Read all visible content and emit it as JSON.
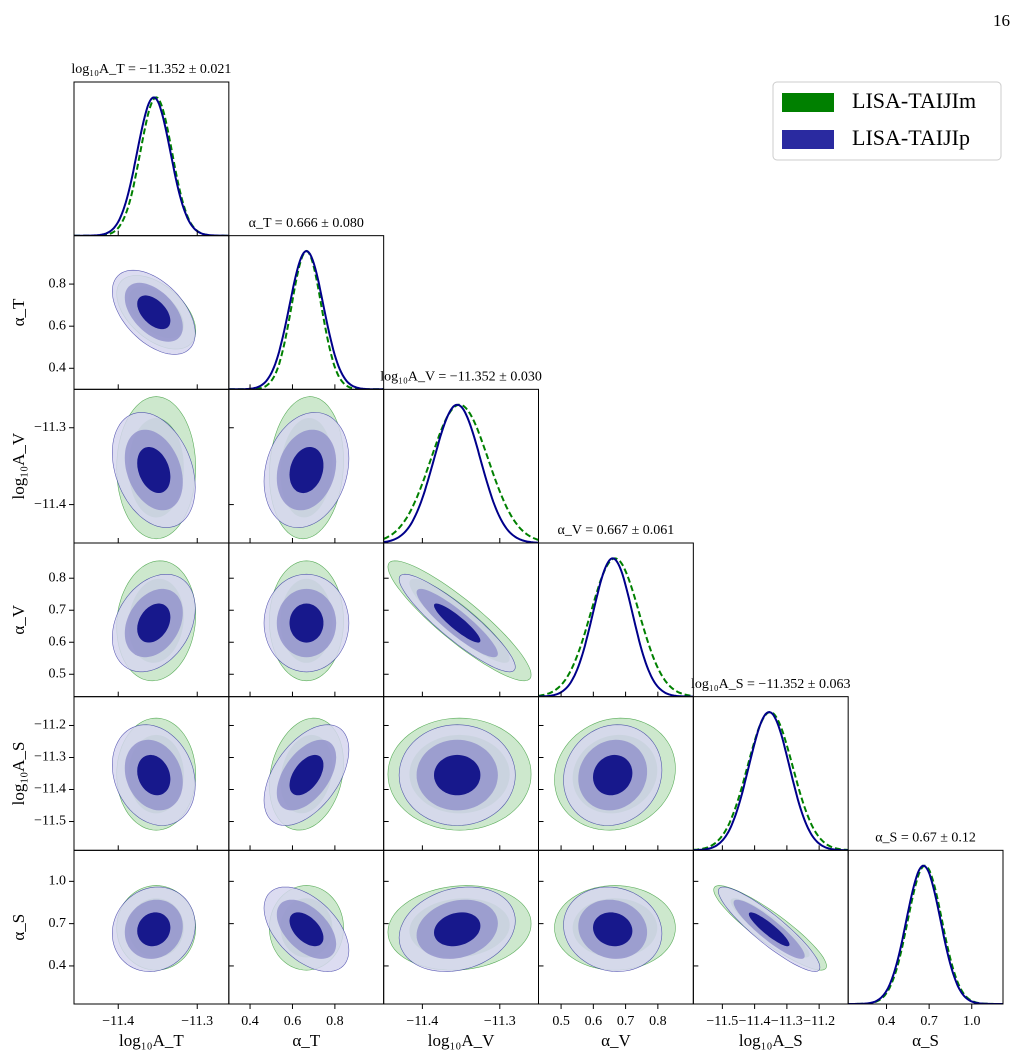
{
  "page_number": "16",
  "chart_data": {
    "type": "corner",
    "params": [
      {
        "label": "log₁₀A_T",
        "title": "log₁₀A_T = −11.352 ± 0.021",
        "lim": [
          -11.456,
          -11.26
        ],
        "ticks": [
          {
            "value": -11.4,
            "label": "−11.4"
          },
          {
            "value": -11.3,
            "label": "−11.3"
          }
        ]
      },
      {
        "label": "α_T",
        "title": "α_T = 0.666 ± 0.080",
        "lim": [
          0.3,
          1.03
        ],
        "ticks": [
          0.4,
          0.6,
          0.8
        ]
      },
      {
        "label": "log₁₀A_V",
        "title": "log₁₀A_V = −11.352 ± 0.030",
        "lim": [
          -11.45,
          -11.25
        ],
        "ticks": [
          {
            "value": -11.4,
            "label": "−11.4"
          },
          {
            "value": -11.3,
            "label": "−11.3"
          }
        ]
      },
      {
        "label": "α_V",
        "title": "α_V = 0.667 ± 0.061",
        "lim": [
          0.43,
          0.91
        ],
        "ticks": [
          0.5,
          0.6,
          0.7,
          0.8
        ]
      },
      {
        "label": "log₁₀A_S",
        "title": "log₁₀A_S = −11.352 ± 0.063",
        "lim": [
          -11.59,
          -11.11
        ],
        "ticks": [
          {
            "value": -11.5,
            "label": "−11.5"
          },
          {
            "value": -11.4,
            "label": "−11.4"
          },
          {
            "value": -11.3,
            "label": "−11.3"
          },
          {
            "value": -11.2,
            "label": "−11.2"
          }
        ]
      },
      {
        "label": "α_S",
        "title": "α_S = 0.67 ± 0.12",
        "lim": [
          0.13,
          1.22
        ],
        "ticks": [
          0.4,
          0.7,
          {
            "value": 1.0,
            "label": "1.0"
          }
        ]
      }
    ],
    "series": [
      {
        "name": "LISA-TAIJIm",
        "color": "#008000",
        "line_color": "#008000",
        "dashed": true,
        "contour_colors": [
          "#cde8cd",
          "#86c486"
        ],
        "means": [
          -11.352,
          0.666,
          -11.352,
          0.667,
          -11.352,
          0.67
        ],
        "sigmas": [
          0.02,
          0.07,
          0.037,
          0.075,
          0.07,
          0.12
        ],
        "correlations": [
          -0.5,
          0,
          0.1,
          0.1,
          0,
          -0.9,
          0,
          0.2,
          0,
          0.1,
          0,
          0,
          0.1,
          0,
          -0.9
        ]
      },
      {
        "name": "LISA-TAIJIp",
        "color": "#2a2aa0",
        "line_color": "#00008b",
        "dashed": false,
        "contour_colors": [
          "#d6d6ee",
          "#9494cc",
          "#000080"
        ],
        "means": [
          -11.355,
          0.666,
          -11.355,
          0.66,
          -11.355,
          0.66
        ],
        "sigmas": [
          0.021,
          0.08,
          0.03,
          0.061,
          0.063,
          0.12
        ],
        "correlations": [
          -0.5,
          -0.3,
          0.2,
          0.3,
          0,
          -0.9,
          -0.2,
          0.5,
          0,
          0.1,
          0.1,
          -0.5,
          0.2,
          -0.1,
          -0.9
        ]
      }
    ],
    "legend": "upper right"
  }
}
